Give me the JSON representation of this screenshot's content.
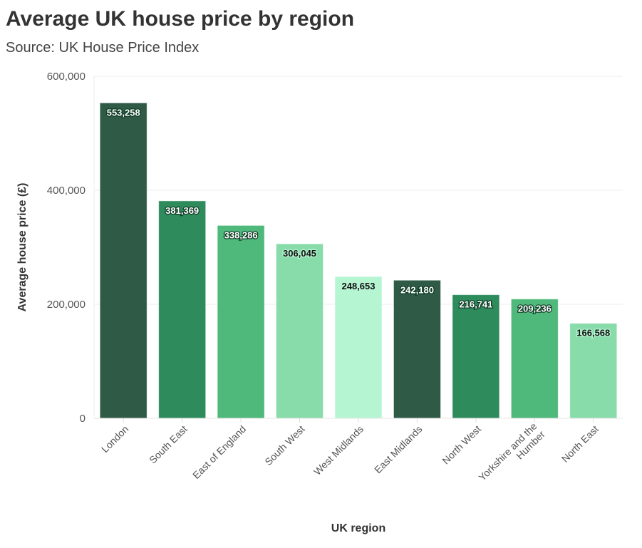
{
  "chart_data": {
    "type": "bar",
    "title": "Average UK house price by region",
    "subtitle": "Source: UK House Price Index",
    "xlabel": "UK region",
    "ylabel": "Average house price (£)",
    "ylim": [
      0,
      600000
    ],
    "yticks": [
      0,
      200000,
      400000,
      600000
    ],
    "ytick_labels": [
      "0",
      "200,000",
      "400,000",
      "600,000"
    ],
    "grid": true,
    "categories": [
      "London",
      "South East",
      "East of England",
      "South West",
      "West Midlands",
      "East Midlands",
      "North West",
      "Yorkshire and the Humber",
      "North East"
    ],
    "values": [
      553258,
      381369,
      338286,
      306045,
      248653,
      242180,
      216741,
      209236,
      166568
    ],
    "data_labels": [
      "553,258",
      "381,369",
      "338,286",
      "306,045",
      "248,653",
      "242,180",
      "216,741",
      "209,236",
      "166,568"
    ],
    "colors": [
      "#2f5a46",
      "#2e8b5c",
      "#4fb97c",
      "#88dcaa",
      "#b6f5d2",
      "#2f5a46",
      "#2e8b5c",
      "#4fb97c",
      "#88dcaa"
    ],
    "label_colors": [
      "#ffffff",
      "#ffffff",
      "#ffffff",
      "#111111",
      "#111111",
      "#ffffff",
      "#ffffff",
      "#ffffff",
      "#111111"
    ]
  }
}
